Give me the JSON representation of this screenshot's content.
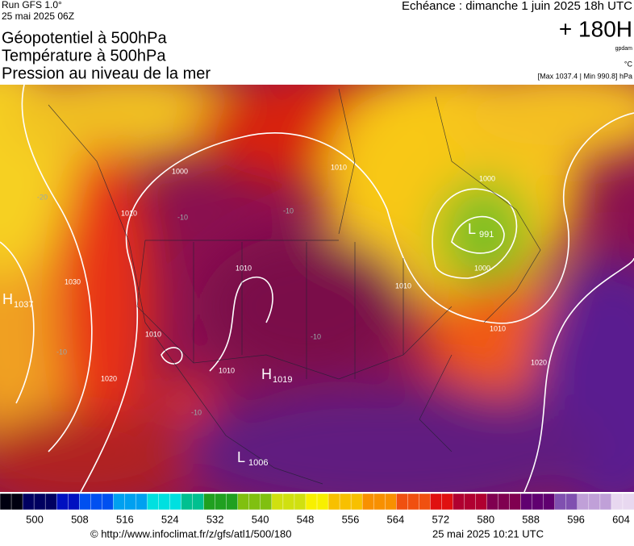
{
  "header": {
    "run": "Run GFS 1.0°",
    "run_date": "25 mai 2025 06Z",
    "validity": "Echéance : dimanche 1 juin 2025 18h UTC",
    "lead": "+ 180H",
    "unit_gpdam": "gpdam",
    "unit_temp": "°C",
    "range": "[Max 1037.4 | Min 990.8] hPa",
    "titles": [
      "Géopotentiel à 500hPa",
      "Température à 500hPa",
      "Pression au niveau de la mer"
    ]
  },
  "map": {
    "centers": [
      {
        "type": "H",
        "value": "1037"
      },
      {
        "type": "L",
        "value": "991"
      },
      {
        "type": "H",
        "value": "1019"
      },
      {
        "type": "L",
        "value": "1006"
      }
    ],
    "isobar_labels": [
      "1010",
      "1000",
      "1000",
      "1010",
      "1010",
      "1010",
      "1010",
      "1020",
      "1020",
      "1030",
      "1010",
      "1000",
      "1010"
    ],
    "temperature_labels": [
      "-20",
      "-10",
      "-10",
      "-10",
      "-10",
      "-10"
    ]
  },
  "colorbar": {
    "ticks": [
      "500",
      "508",
      "516",
      "524",
      "532",
      "540",
      "548",
      "556",
      "564",
      "572",
      "580",
      "588",
      "596",
      "604"
    ]
  },
  "footer": {
    "url": "© http://www.infoclimat.fr/z/gfs/atl1/500/180",
    "timestamp": "25 mai 2025 10:21 UTC"
  }
}
